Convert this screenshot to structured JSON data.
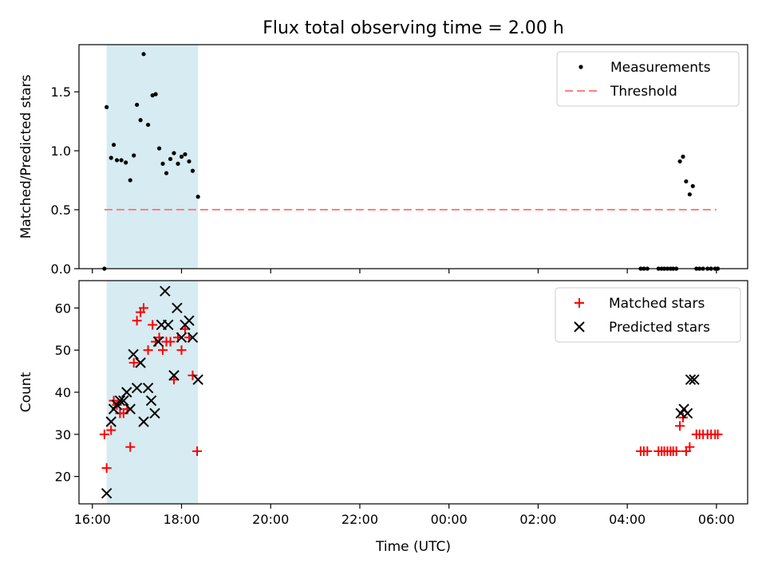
{
  "title": "Flux total observing time = 2.00 h",
  "xlabel": "Time (UTC)",
  "x_tick_labels": [
    "16:00",
    "18:00",
    "20:00",
    "22:00",
    "00:00",
    "02:00",
    "04:00",
    "06:00"
  ],
  "colors": {
    "shade": "#add8e6",
    "threshold": "#ff7f7f",
    "matched": "#ff0000",
    "predicted": "#000000",
    "measure": "#000000"
  },
  "chart_data": [
    {
      "type": "scatter",
      "ylabel": "Matched/Predicted stars",
      "xlim_hours": [
        15.7,
        30.7
      ],
      "ylim": [
        0,
        1.9
      ],
      "y_ticks": [
        0.0,
        0.5,
        1.0,
        1.5
      ],
      "shaded_span_hours": [
        16.32,
        18.37
      ],
      "legend_location": "top-right",
      "series": [
        {
          "name": "Measurements",
          "marker": "dot",
          "points": [
            [
              16.27,
              0.0
            ],
            [
              16.32,
              1.37
            ],
            [
              16.42,
              0.94
            ],
            [
              16.48,
              1.05
            ],
            [
              16.55,
              0.92
            ],
            [
              16.65,
              0.92
            ],
            [
              16.75,
              0.9
            ],
            [
              16.85,
              0.75
            ],
            [
              16.93,
              0.96
            ],
            [
              17.0,
              1.39
            ],
            [
              17.08,
              1.26
            ],
            [
              17.15,
              1.82
            ],
            [
              17.25,
              1.22
            ],
            [
              17.35,
              1.47
            ],
            [
              17.42,
              1.48
            ],
            [
              17.5,
              1.02
            ],
            [
              17.58,
              0.89
            ],
            [
              17.66,
              0.81
            ],
            [
              17.75,
              0.93
            ],
            [
              17.83,
              0.98
            ],
            [
              17.92,
              0.89
            ],
            [
              18.0,
              0.95
            ],
            [
              18.08,
              0.97
            ],
            [
              18.17,
              0.91
            ],
            [
              18.25,
              0.83
            ],
            [
              18.37,
              0.61
            ],
            [
              28.3,
              0.0
            ],
            [
              28.37,
              0.0
            ],
            [
              28.45,
              0.0
            ],
            [
              28.7,
              0.0
            ],
            [
              28.77,
              0.0
            ],
            [
              28.83,
              0.0
            ],
            [
              28.9,
              0.0
            ],
            [
              28.97,
              0.0
            ],
            [
              29.03,
              0.0
            ],
            [
              29.1,
              0.0
            ],
            [
              29.18,
              0.91
            ],
            [
              29.25,
              0.95
            ],
            [
              29.32,
              0.74
            ],
            [
              29.4,
              0.63
            ],
            [
              29.47,
              0.7
            ],
            [
              29.55,
              0.0
            ],
            [
              29.62,
              0.0
            ],
            [
              29.7,
              0.0
            ],
            [
              29.8,
              0.0
            ],
            [
              29.88,
              0.0
            ],
            [
              29.97,
              0.0
            ],
            [
              30.03,
              0.0
            ]
          ]
        },
        {
          "name": "Threshold",
          "line": "dashed",
          "x_hours": [
            16.27,
            30.0
          ],
          "y": 0.5
        }
      ]
    },
    {
      "type": "scatter",
      "ylabel": "Count",
      "xlim_hours": [
        15.7,
        30.7
      ],
      "ylim": [
        13.5,
        66.5
      ],
      "y_ticks": [
        20,
        30,
        40,
        50,
        60
      ],
      "shaded_span_hours": [
        16.32,
        18.37
      ],
      "legend_location": "top-right",
      "series": [
        {
          "name": "Matched stars",
          "marker": "plus",
          "points": [
            [
              16.27,
              30
            ],
            [
              16.32,
              22
            ],
            [
              16.42,
              31
            ],
            [
              16.48,
              38
            ],
            [
              16.55,
              37
            ],
            [
              16.62,
              35
            ],
            [
              16.7,
              35
            ],
            [
              16.78,
              36
            ],
            [
              16.85,
              27
            ],
            [
              16.93,
              47
            ],
            [
              17.0,
              57
            ],
            [
              17.08,
              59
            ],
            [
              17.15,
              60
            ],
            [
              17.25,
              50
            ],
            [
              17.35,
              56
            ],
            [
              17.42,
              52
            ],
            [
              17.5,
              53
            ],
            [
              17.58,
              50
            ],
            [
              17.66,
              52
            ],
            [
              17.75,
              52
            ],
            [
              17.83,
              43
            ],
            [
              17.92,
              53
            ],
            [
              18.0,
              50
            ],
            [
              18.08,
              55
            ],
            [
              18.17,
              53
            ],
            [
              18.25,
              44
            ],
            [
              18.35,
              26
            ],
            [
              28.3,
              26
            ],
            [
              28.37,
              26
            ],
            [
              28.45,
              26
            ],
            [
              28.7,
              26
            ],
            [
              28.77,
              26
            ],
            [
              28.83,
              26
            ],
            [
              28.9,
              26
            ],
            [
              28.97,
              26
            ],
            [
              29.03,
              26
            ],
            [
              29.1,
              26
            ],
            [
              29.18,
              32
            ],
            [
              29.25,
              34
            ],
            [
              29.32,
              26
            ],
            [
              29.4,
              27
            ],
            [
              29.55,
              30
            ],
            [
              29.62,
              30
            ],
            [
              29.7,
              30
            ],
            [
              29.8,
              30
            ],
            [
              29.88,
              30
            ],
            [
              29.97,
              30
            ],
            [
              30.03,
              30
            ]
          ]
        },
        {
          "name": "Predicted stars",
          "marker": "x",
          "points": [
            [
              16.32,
              16
            ],
            [
              16.42,
              33
            ],
            [
              16.48,
              36
            ],
            [
              16.55,
              37
            ],
            [
              16.62,
              38
            ],
            [
              16.7,
              38
            ],
            [
              16.77,
              40
            ],
            [
              16.85,
              36
            ],
            [
              16.92,
              49
            ],
            [
              17.0,
              41
            ],
            [
              17.08,
              47
            ],
            [
              17.15,
              33
            ],
            [
              17.25,
              41
            ],
            [
              17.32,
              38
            ],
            [
              17.4,
              35
            ],
            [
              17.48,
              52
            ],
            [
              17.55,
              56
            ],
            [
              17.63,
              64
            ],
            [
              17.7,
              56
            ],
            [
              17.83,
              44
            ],
            [
              17.9,
              60
            ],
            [
              18.0,
              53
            ],
            [
              18.08,
              56
            ],
            [
              18.17,
              57
            ],
            [
              18.25,
              53
            ],
            [
              18.37,
              43
            ],
            [
              29.2,
              35
            ],
            [
              29.27,
              36
            ],
            [
              29.35,
              35
            ],
            [
              29.42,
              43
            ],
            [
              29.5,
              43
            ]
          ]
        }
      ]
    }
  ]
}
